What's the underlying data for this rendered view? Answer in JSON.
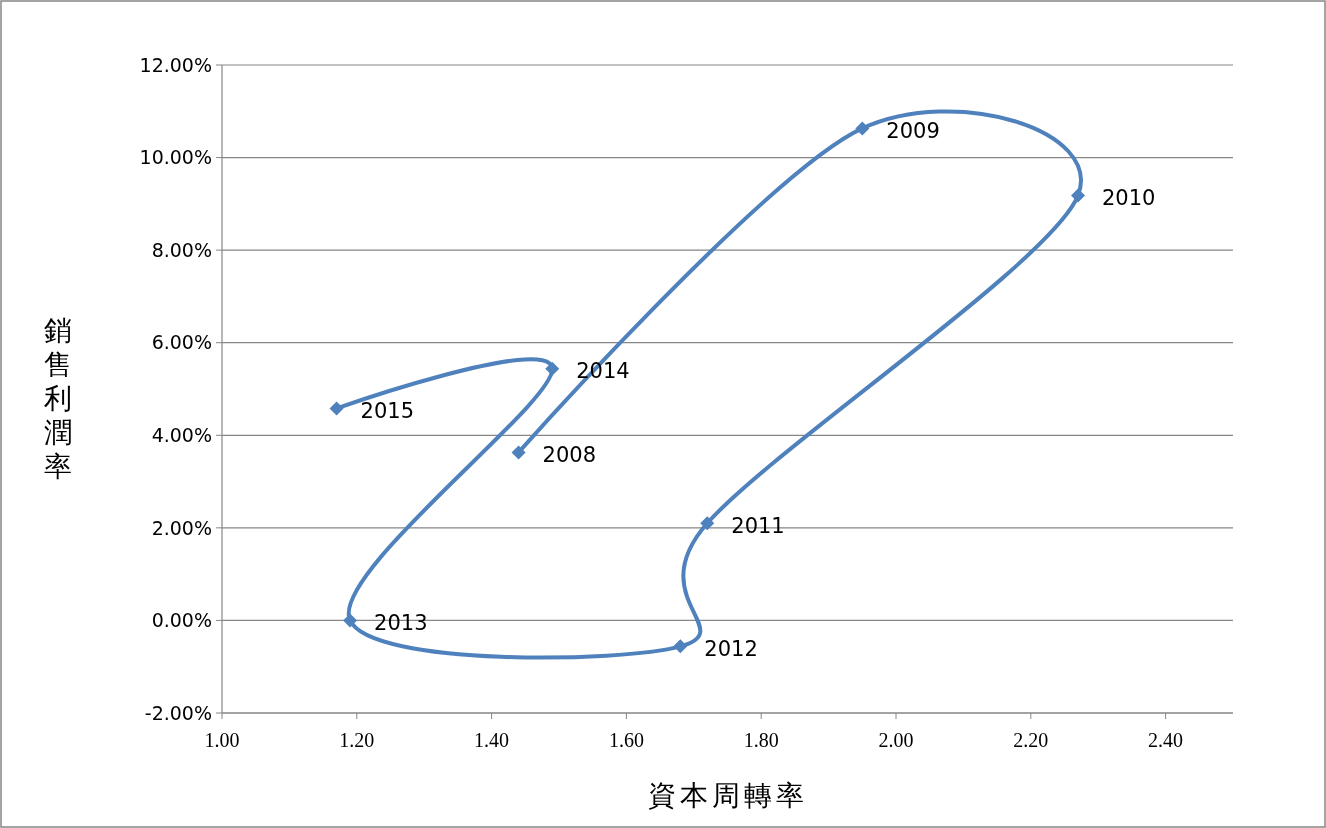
{
  "chart_data": {
    "type": "line",
    "xlabel": "資本周轉率",
    "ylabel": "銷售利潤率",
    "series": [
      {
        "color": "#4f81bd",
        "x": [
          1.44,
          1.95,
          2.27,
          1.72,
          1.68,
          1.19,
          1.49,
          1.17
        ],
        "values": [
          3.63,
          10.63,
          9.18,
          2.1,
          -0.56,
          0,
          5.44,
          4.58
        ]
      }
    ],
    "xlim": [
      1,
      2.5
    ],
    "xticks": [
      {
        "value": 1,
        "label": "1.00"
      },
      {
        "value": 1.2,
        "label": "1.20"
      },
      {
        "value": 1.4,
        "label": "1.40"
      },
      {
        "value": 1.6,
        "label": "1.60"
      },
      {
        "value": 1.8,
        "label": "1.80"
      },
      {
        "value": 2,
        "label": "2.00"
      },
      {
        "value": 2.2,
        "label": "2.20"
      },
      {
        "value": 2.4,
        "label": "2.40"
      }
    ],
    "ylim": [
      -2,
      12
    ],
    "yticks": [
      {
        "value": -2,
        "label": "-2.00%"
      },
      {
        "value": 0,
        "label": "0.00%"
      },
      {
        "value": 2,
        "label": "2.00%"
      },
      {
        "value": 4,
        "label": "4.00%"
      },
      {
        "value": 6,
        "label": "6.00%"
      },
      {
        "value": 8,
        "label": "8.00%"
      },
      {
        "value": 10,
        "label": "10.00%"
      },
      {
        "value": 12,
        "label": "12.00%"
      }
    ],
    "grid": "y",
    "marker": "diamond",
    "line_style": "solid",
    "annotations": [
      {
        "text": "2008",
        "x": 1.44,
        "y": 3.63
      },
      {
        "text": "2009",
        "x": 1.95,
        "y": 10.63
      },
      {
        "text": "2010",
        "x": 2.27,
        "y": 9.18
      },
      {
        "text": "2011",
        "x": 1.72,
        "y": 2.1
      },
      {
        "text": "2012",
        "x": 1.68,
        "y": -0.56
      },
      {
        "text": "2013",
        "x": 1.19,
        "y": 0
      },
      {
        "text": "2014",
        "x": 1.49,
        "y": 5.44
      },
      {
        "text": "2015",
        "x": 1.17,
        "y": 4.58
      }
    ]
  }
}
